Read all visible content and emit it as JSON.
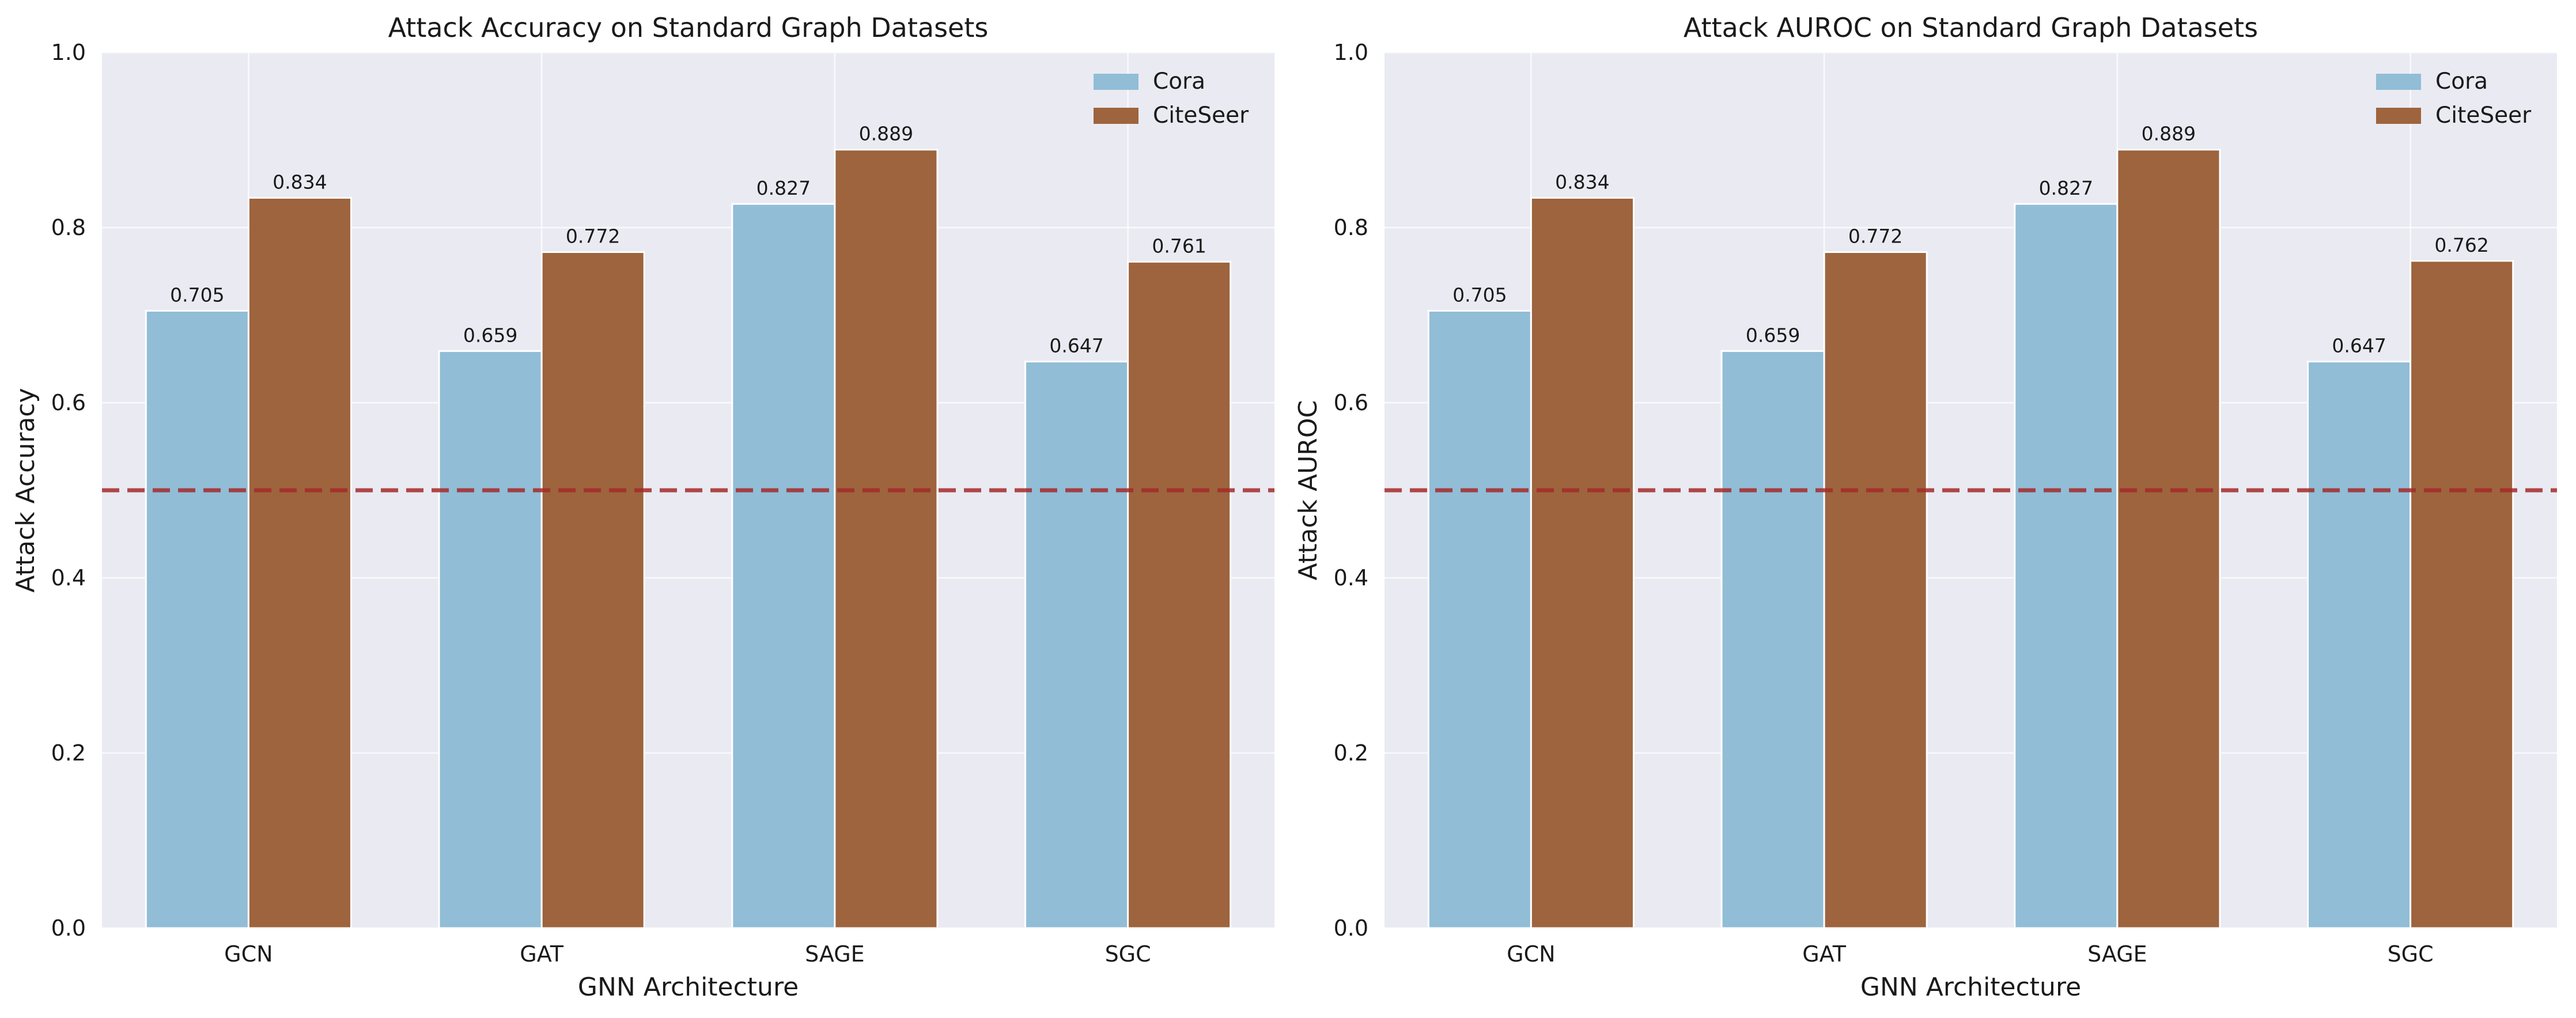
{
  "colors": {
    "background": "#eaeaf2",
    "grid": "#ffffff",
    "cora": "#91bdd6",
    "citeseer": "#9d643e",
    "reference_line": "#a52a2a"
  },
  "chart_data": [
    {
      "type": "bar",
      "title": "Attack Accuracy on Standard Graph Datasets",
      "xlabel": "GNN Architecture",
      "ylabel": "Attack Accuracy",
      "categories": [
        "GCN",
        "GAT",
        "SAGE",
        "SGC"
      ],
      "series": [
        {
          "name": "Cora",
          "values": [
            0.705,
            0.659,
            0.827,
            0.647
          ],
          "labels": [
            "0.705",
            "0.659",
            "0.827",
            "0.647"
          ]
        },
        {
          "name": "CiteSeer",
          "values": [
            0.834,
            0.772,
            0.889,
            0.761
          ],
          "labels": [
            "0.834",
            "0.772",
            "0.889",
            "0.761"
          ]
        }
      ],
      "ylim": [
        0,
        1.0
      ],
      "yticks": [
        0.0,
        0.2,
        0.4,
        0.6,
        0.8,
        1.0
      ],
      "ytick_labels": [
        "0.0",
        "0.2",
        "0.4",
        "0.6",
        "0.8",
        "1.0"
      ],
      "reference_line": 0.5,
      "grid": true,
      "legend_position": "top-right"
    },
    {
      "type": "bar",
      "title": "Attack AUROC on Standard Graph Datasets",
      "xlabel": "GNN Architecture",
      "ylabel": "Attack AUROC",
      "categories": [
        "GCN",
        "GAT",
        "SAGE",
        "SGC"
      ],
      "series": [
        {
          "name": "Cora",
          "values": [
            0.705,
            0.659,
            0.827,
            0.647
          ],
          "labels": [
            "0.705",
            "0.659",
            "0.827",
            "0.647"
          ]
        },
        {
          "name": "CiteSeer",
          "values": [
            0.834,
            0.772,
            0.889,
            0.762
          ],
          "labels": [
            "0.834",
            "0.772",
            "0.889",
            "0.762"
          ]
        }
      ],
      "ylim": [
        0,
        1.0
      ],
      "yticks": [
        0.0,
        0.2,
        0.4,
        0.6,
        0.8,
        1.0
      ],
      "ytick_labels": [
        "0.0",
        "0.2",
        "0.4",
        "0.6",
        "0.8",
        "1.0"
      ],
      "reference_line": 0.5,
      "grid": true,
      "legend_position": "top-right"
    }
  ]
}
